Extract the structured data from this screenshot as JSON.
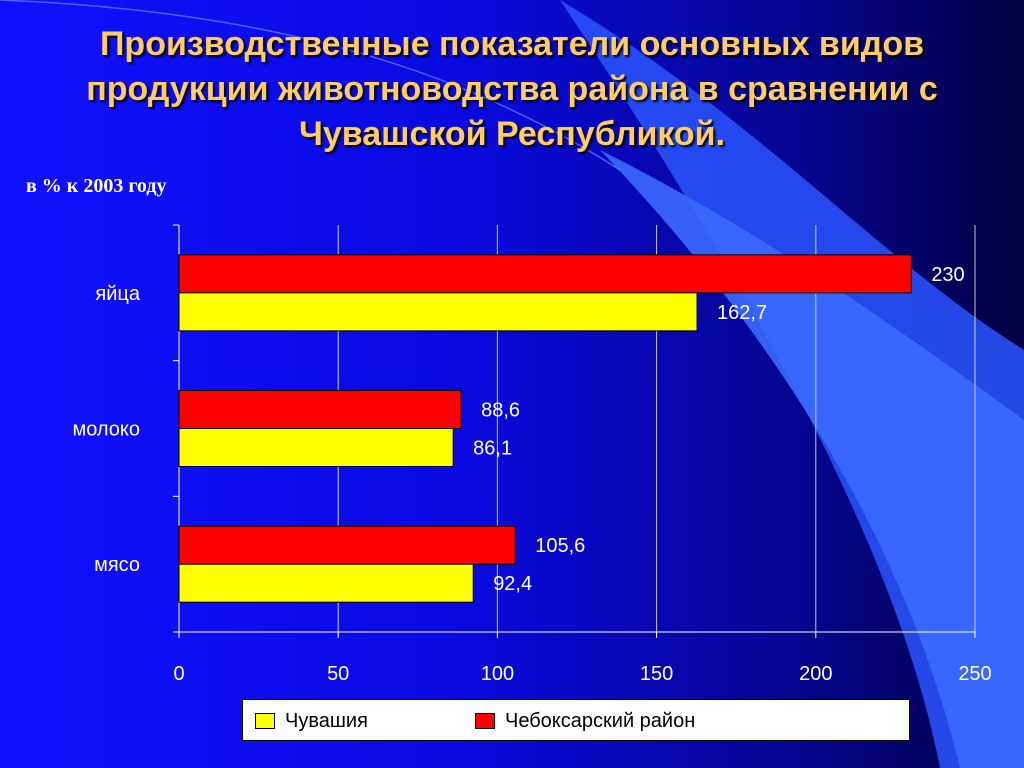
{
  "title": {
    "line1": "Производственные показатели основных видов",
    "line2": "продукции животноводства района в сравнении с",
    "line3": "Чувашской Республикой."
  },
  "subtitle": "в % к 2003 году",
  "chart_data": {
    "type": "bar",
    "orientation": "horizontal",
    "categories": [
      "яйца",
      "молоко",
      "мясо"
    ],
    "series": [
      {
        "name": "Чувашия",
        "color": "#ffff00",
        "values": [
          162.7,
          86.1,
          92.4
        ],
        "labels": [
          "162,7",
          "86,1",
          "92,4"
        ]
      },
      {
        "name": "Чебоксарский район",
        "color": "#ff0000",
        "values": [
          230,
          88.6,
          105.6
        ],
        "labels": [
          "230",
          "88,6",
          "105,6"
        ]
      }
    ],
    "xlim": [
      0,
      250
    ],
    "xticks": [
      0,
      50,
      100,
      150,
      200,
      250
    ],
    "grid": true,
    "legend_position": "bottom"
  },
  "colors": {
    "background": "#0a0ae0",
    "title": "#ffcc66",
    "chart_yellow": "#ffff00",
    "chart_red": "#ff0000"
  }
}
